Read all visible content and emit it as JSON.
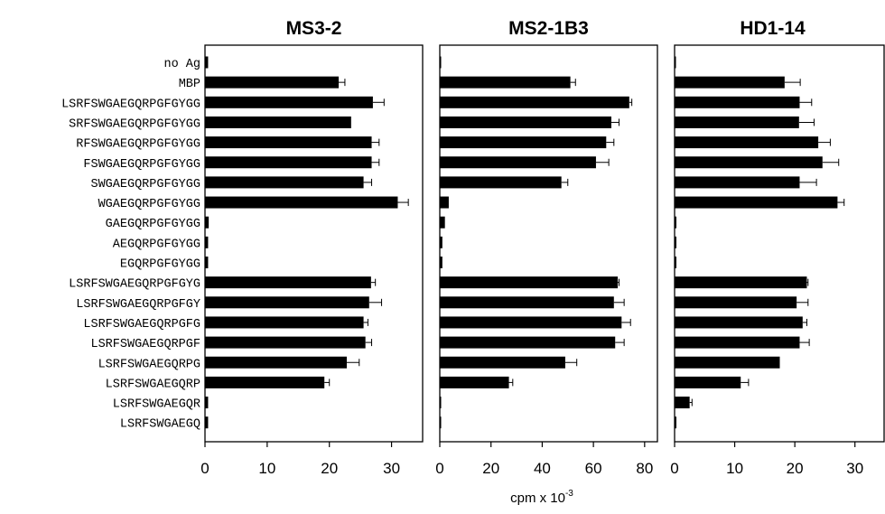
{
  "chart_data": {
    "type": "bar",
    "orientation": "horizontal",
    "categories": [
      "no Ag",
      "MBP",
      "LSRFSWGAEGQRPGFGYGG",
      "SRFSWGAEGQRPGFGYGG",
      "RFSWGAEGQRPGFGYGG",
      "FSWGAEGQRPGFGYGG",
      "SWGAEGQRPGFGYGG",
      "WGAEGQRPGFGYGG",
      "GAEGQRPGFGYGG",
      "AEGQRPGFGYGG",
      "EGQRPGFGYGG",
      "LSRFSWGAEGQRPGFGYG",
      "LSRFSWGAEGQRPGFGY",
      "LSRFSWGAEGQRPGFG",
      "LSRFSWGAEGQRPGF",
      "LSRFSWGAEGQRPG",
      "LSRFSWGAEGQRP",
      "LSRFSWGAEGQR",
      "LSRFSWGAEGQ"
    ],
    "xlabel": "cpm x 10",
    "xlabel_exponent": "-3",
    "grid": false,
    "panels": [
      {
        "title": "MS3-2",
        "xlim": [
          0,
          35
        ],
        "xticks": [
          0,
          10,
          20,
          30
        ],
        "values": [
          0.5,
          21.5,
          27,
          23.5,
          26.8,
          26.8,
          25.5,
          31,
          0.6,
          0.5,
          0.5,
          26.7,
          26.4,
          25.5,
          25.8,
          22.8,
          19.2,
          0.5,
          0.5
        ],
        "errors": [
          0,
          1,
          1.8,
          0,
          1.2,
          1.2,
          1.3,
          1.7,
          0,
          0,
          0,
          0.7,
          2,
          0.7,
          1,
          2,
          0.8,
          0,
          0
        ]
      },
      {
        "title": "MS2-1B3",
        "xlim": [
          0,
          85
        ],
        "xticks": [
          0,
          20,
          40,
          60,
          80
        ],
        "values": [
          0.5,
          51,
          74,
          67,
          65,
          61,
          47.5,
          3.5,
          2,
          1,
          1,
          69.5,
          68,
          71,
          68.5,
          49,
          27,
          0.5,
          0.5
        ],
        "errors": [
          0,
          2,
          1,
          3,
          3,
          5,
          2.5,
          0,
          0,
          0,
          0,
          0.5,
          4,
          3.5,
          3.5,
          4.5,
          1.5,
          0,
          0
        ]
      },
      {
        "title": "HD1-14",
        "xlim": [
          0,
          35
        ],
        "xticks": [
          0,
          10,
          20,
          30
        ],
        "values": [
          0.2,
          18.3,
          20.8,
          20.7,
          23.9,
          24.6,
          20.8,
          27.1,
          0.3,
          0.3,
          0.3,
          22,
          20.3,
          21.3,
          20.8,
          17.5,
          11,
          2.5,
          0.3
        ],
        "errors": [
          0,
          2.6,
          2,
          2.5,
          2,
          2.7,
          2.8,
          1.1,
          0,
          0,
          0,
          0.2,
          1.9,
          0.7,
          1.6,
          0,
          1.3,
          0.4,
          0
        ]
      }
    ]
  }
}
